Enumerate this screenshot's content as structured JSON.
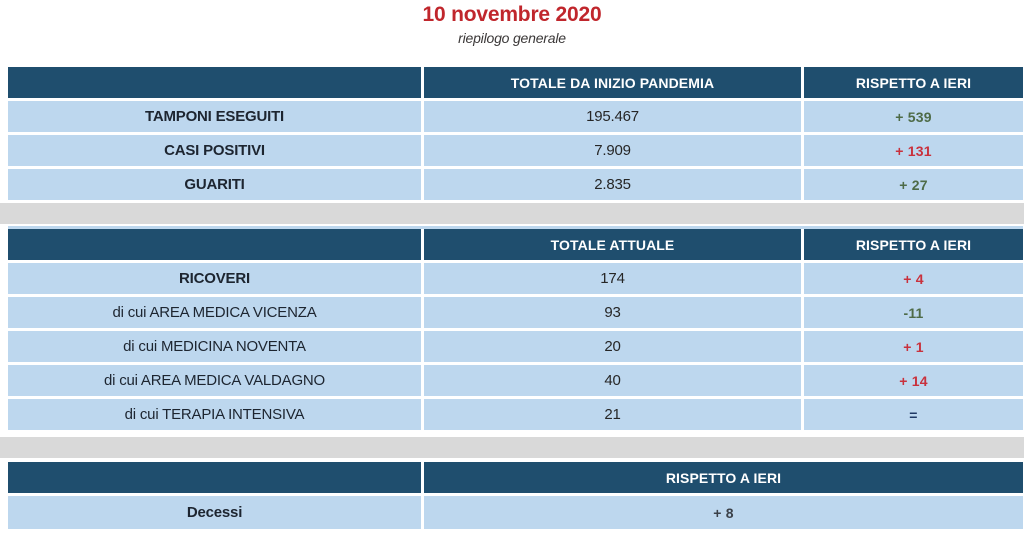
{
  "page": {
    "title": "10 novembre 2020",
    "subtitle": "riepilogo generale"
  },
  "colors": {
    "title-red": "#C0262C",
    "subtitle-gray": "#3B3838",
    "header-bg": "#1F4E6E",
    "row-bg": "#BDD7EE",
    "spacer-bg": "#D9D9D9",
    "positive-green": "#4E6B47",
    "negative-red": "#C9313D",
    "neutral-navy": "#1F3864",
    "delta-dark": "#3B4149"
  },
  "tables": [
    {
      "id": "totali-da-inizio-pandemia",
      "headers": [
        "",
        "TOTALE DA INIZIO PANDEMIA",
        "RISPETTO A IERI"
      ],
      "rows": [
        {
          "label": "TAMPONI ESEGUITI",
          "value": "195.467",
          "delta": "+ 539",
          "delta_color": "green"
        },
        {
          "label": "CASI POSITIVI",
          "value": "7.909",
          "delta": "+ 131",
          "delta_color": "red"
        },
        {
          "label": "GUARITI",
          "value": "2.835",
          "delta": "+ 27",
          "delta_color": "green"
        }
      ]
    },
    {
      "id": "totale-attuale",
      "headers": [
        "",
        "TOTALE ATTUALE",
        "RISPETTO A IERI"
      ],
      "rows": [
        {
          "label": "RICOVERI",
          "value": "174",
          "delta": "+ 4",
          "delta_color": "red"
        },
        {
          "label": "di cui AREA MEDICA VICENZA",
          "value": "93",
          "delta": "-11",
          "delta_color": "green"
        },
        {
          "label": "di cui MEDICINA NOVENTA",
          "value": "20",
          "delta": "+ 1",
          "delta_color": "red"
        },
        {
          "label": "di cui AREA MEDICA VALDAGNO",
          "value": "40",
          "delta": "+ 14",
          "delta_color": "red"
        },
        {
          "label": "di cui TERAPIA INTENSIVA",
          "value": "21",
          "delta": "=",
          "delta_color": "navy"
        }
      ]
    },
    {
      "id": "decessi",
      "headers": [
        "",
        "RISPETTO A IERI"
      ],
      "rows": [
        {
          "label": "Decessi",
          "delta": "+ 8",
          "delta_color": "dark"
        }
      ]
    }
  ]
}
